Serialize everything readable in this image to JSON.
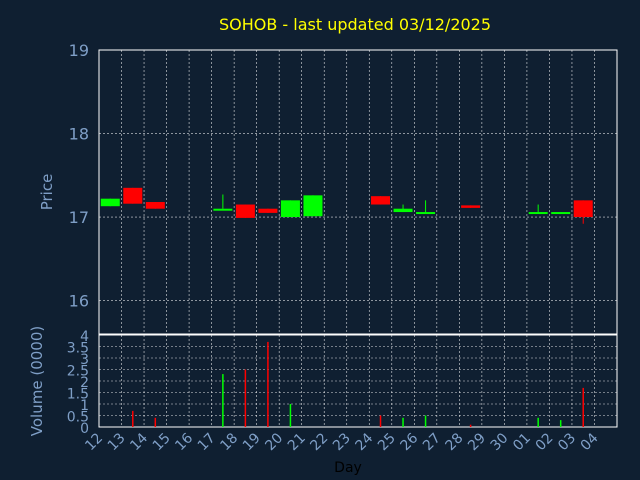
{
  "chart_data": [
    {
      "type": "candlestick",
      "title": "SOHOB - last updated 03/12/2025",
      "ylabel": "Price",
      "ylim": [
        15.6,
        19
      ],
      "yticks": [
        16,
        17,
        18,
        19
      ],
      "grid": true,
      "up_color": "#00ff00",
      "down_color": "#ff0000",
      "x": [
        "12",
        "13",
        "14",
        "15",
        "16",
        "17",
        "18",
        "19",
        "20",
        "21",
        "22",
        "23",
        "24",
        "25",
        "26",
        "27",
        "28",
        "29",
        "30",
        "01",
        "02",
        "03",
        "04"
      ],
      "candles": [
        {
          "x": "12",
          "open": 17.13,
          "close": 17.22,
          "high": 17.22,
          "low": 17.13
        },
        {
          "x": "13",
          "open": 17.35,
          "close": 17.16,
          "high": 17.35,
          "low": 17.16
        },
        {
          "x": "14",
          "open": 17.18,
          "close": 17.1,
          "high": 17.18,
          "low": 17.1
        },
        {
          "x": "17",
          "open": 17.1,
          "close": 17.1,
          "high": 17.27,
          "low": 17.1
        },
        {
          "x": "18",
          "open": 17.15,
          "close": 16.99,
          "high": 17.15,
          "low": 16.99
        },
        {
          "x": "19",
          "open": 17.1,
          "close": 17.05,
          "high": 17.1,
          "low": 17.05
        },
        {
          "x": "20",
          "open": 17.0,
          "close": 17.2,
          "high": 17.2,
          "low": 17.0
        },
        {
          "x": "21",
          "open": 17.01,
          "close": 17.26,
          "high": 17.26,
          "low": 17.01
        },
        {
          "x": "24",
          "open": 17.25,
          "close": 17.15,
          "high": 17.25,
          "low": 17.15
        },
        {
          "x": "25",
          "open": 17.06,
          "close": 17.1,
          "high": 17.15,
          "low": 17.06
        },
        {
          "x": "26",
          "open": 17.06,
          "close": 17.06,
          "high": 17.2,
          "low": 17.06
        },
        {
          "x": "28",
          "open": 17.14,
          "close": 17.11,
          "high": 17.14,
          "low": 17.11
        },
        {
          "x": "01",
          "open": 17.06,
          "close": 17.06,
          "high": 17.15,
          "low": 17.06
        },
        {
          "x": "02",
          "open": 17.06,
          "close": 17.06,
          "high": 17.06,
          "low": 17.06
        },
        {
          "x": "03",
          "open": 17.2,
          "close": 17.0,
          "high": 17.2,
          "low": 16.92
        }
      ]
    },
    {
      "type": "bar",
      "ylabel": "Volume (0000)",
      "xlabel": "Day",
      "ylim": [
        0,
        4
      ],
      "yticks": [
        0,
        0.5,
        1,
        1.5,
        2,
        2.5,
        3,
        3.5,
        4
      ],
      "ytick_labels": [
        "0",
        "0.5",
        "1",
        "1.5",
        "2",
        "2.5",
        "3",
        "3.5",
        "4"
      ],
      "grid": true,
      "x": [
        "12",
        "13",
        "14",
        "15",
        "16",
        "17",
        "18",
        "19",
        "20",
        "21",
        "22",
        "23",
        "24",
        "25",
        "26",
        "27",
        "28",
        "29",
        "30",
        "01",
        "02",
        "03",
        "04"
      ],
      "bars": [
        {
          "x": "13",
          "value": 0.7,
          "color": "#ff0000"
        },
        {
          "x": "14",
          "value": 0.4,
          "color": "#ff0000"
        },
        {
          "x": "17",
          "value": 2.3,
          "color": "#00ff00"
        },
        {
          "x": "18",
          "value": 2.5,
          "color": "#ff0000"
        },
        {
          "x": "19",
          "value": 3.7,
          "color": "#ff0000"
        },
        {
          "x": "20",
          "value": 1.0,
          "color": "#00ff00"
        },
        {
          "x": "24",
          "value": 0.5,
          "color": "#ff0000"
        },
        {
          "x": "25",
          "value": 0.4,
          "color": "#00ff00"
        },
        {
          "x": "26",
          "value": 0.5,
          "color": "#00ff00"
        },
        {
          "x": "28",
          "value": 0.1,
          "color": "#ff0000"
        },
        {
          "x": "01",
          "value": 0.4,
          "color": "#00ff00"
        },
        {
          "x": "02",
          "value": 0.3,
          "color": "#00ff00"
        },
        {
          "x": "03",
          "value": 1.7,
          "color": "#ff0000"
        }
      ]
    }
  ]
}
